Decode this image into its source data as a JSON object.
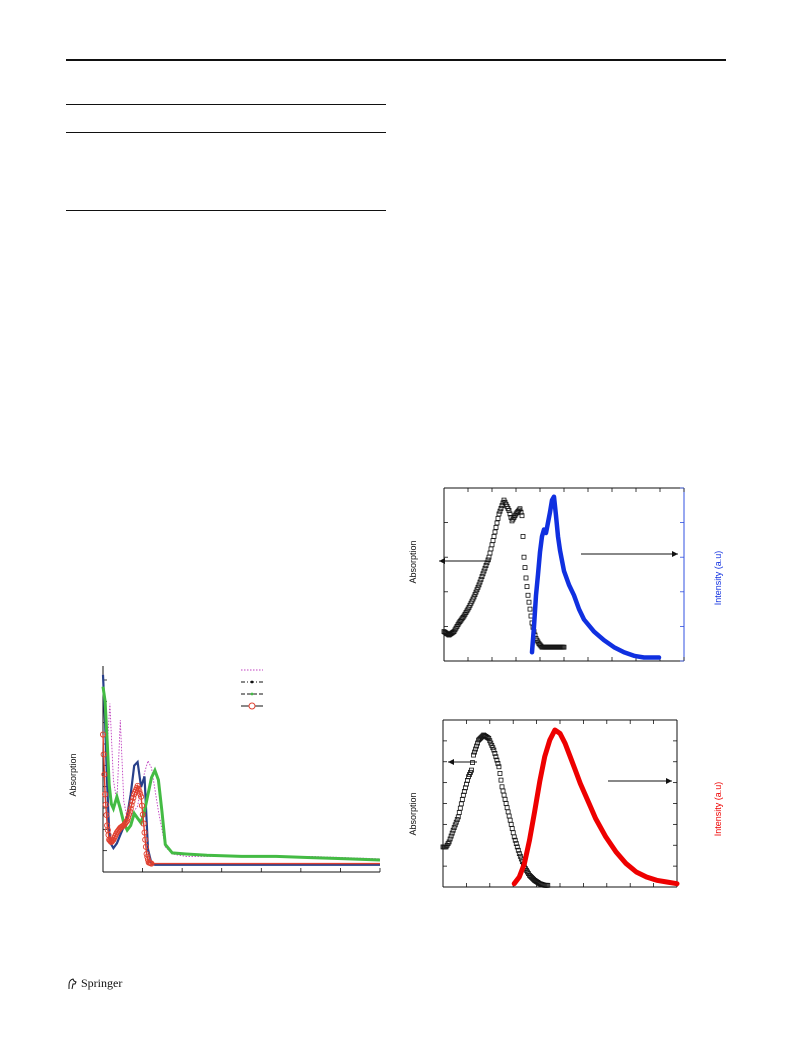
{
  "publisher": {
    "name": "Springer",
    "logo_icon": "springer-horse-icon"
  },
  "charts": {
    "absorption_series": {
      "type": "line",
      "ylabel": "Absorption",
      "legend_position": "top-right",
      "legend_labels": [
        "",
        "",
        "",
        ""
      ],
      "series": [
        {
          "style": "dotted",
          "color": "#c040c0",
          "x": [
            0,
            5,
            10,
            15,
            20,
            25,
            30,
            35,
            40,
            45,
            50,
            55,
            60,
            65,
            70,
            80,
            90,
            100,
            120,
            150,
            200,
            250,
            300,
            350,
            400
          ],
          "y": [
            8,
            4.5,
            6.8,
            3.6,
            2.7,
            6.1,
            2.7,
            2.0,
            2.1,
            2.3,
            2.5,
            3.3,
            3.9,
            4.4,
            4.1,
            2.3,
            0.8,
            0.5,
            0.4,
            0.4,
            0.4,
            0.4,
            0.4,
            0.35,
            0.3
          ]
        },
        {
          "style": "solid",
          "color": "#28408a",
          "x": [
            0,
            3,
            6,
            9,
            12,
            15,
            20,
            25,
            30,
            35,
            40,
            45,
            50,
            55,
            60,
            65,
            70,
            75,
            80,
            90,
            100,
            120,
            150,
            200,
            250,
            300,
            350,
            400
          ],
          "y": [
            8,
            6.0,
            3.4,
            1.4,
            0.9,
            0.75,
            0.95,
            1.3,
            1.65,
            2.1,
            3.0,
            4.2,
            4.35,
            3.3,
            3.75,
            0.7,
            0.1,
            0.05,
            0.05,
            0.05,
            0.05,
            0.05,
            0.05,
            0.05,
            0.05,
            0.05,
            0.05,
            0.05
          ]
        },
        {
          "style": "markers-star",
          "color": "#44bb44",
          "x": [
            0,
            3,
            6,
            9,
            12,
            15,
            20,
            25,
            30,
            35,
            40,
            45,
            50,
            55,
            60,
            65,
            70,
            75,
            80,
            85,
            90,
            100,
            120,
            150,
            200,
            250,
            300,
            350,
            400
          ],
          "y": [
            7.5,
            6.9,
            5.2,
            3.4,
            2.6,
            2.4,
            2.9,
            2.4,
            1.8,
            1.5,
            1.7,
            2.2,
            2.0,
            1.8,
            2.3,
            3.0,
            3.7,
            4.0,
            3.6,
            2.3,
            0.9,
            0.55,
            0.5,
            0.45,
            0.4,
            0.4,
            0.35,
            0.3,
            0.25
          ]
        },
        {
          "style": "markers-circle",
          "color": "#e04030",
          "x": [
            0,
            3,
            6,
            9,
            12,
            15,
            20,
            25,
            30,
            35,
            40,
            45,
            50,
            55,
            60,
            63,
            66,
            70,
            80,
            100,
            150,
            200,
            250,
            300,
            350,
            400
          ],
          "y": [
            5.5,
            3.0,
            1.7,
            1.1,
            1.0,
            1.1,
            1.4,
            1.6,
            1.7,
            1.9,
            2.4,
            3.0,
            3.35,
            2.9,
            1.4,
            0.5,
            0.15,
            0.1,
            0.1,
            0.1,
            0.1,
            0.1,
            0.1,
            0.1,
            0.1,
            0.1
          ]
        }
      ],
      "xlim": [
        0,
        400
      ],
      "ylim": [
        0,
        8.2
      ]
    },
    "abs_emission_blue": {
      "type": "line",
      "ylabel": "Absorption",
      "ylabel_right": "Intensity (a.u)",
      "absorption": {
        "color": "#111111",
        "x": [
          0,
          5,
          10,
          15,
          20,
          25,
          30,
          35,
          40,
          45,
          50,
          55,
          60,
          65,
          68,
          72,
          76,
          78,
          80,
          82,
          84,
          86,
          88,
          90,
          92,
          95,
          98,
          100,
          102,
          104,
          106,
          108,
          110,
          115,
          120
        ],
        "y": [
          0.17,
          0.15,
          0.17,
          0.22,
          0.26,
          0.31,
          0.37,
          0.44,
          0.52,
          0.6,
          0.72,
          0.85,
          0.93,
          0.87,
          0.81,
          0.85,
          0.88,
          0.84,
          0.6,
          0.48,
          0.38,
          0.3,
          0.22,
          0.17,
          0.13,
          0.1,
          0.08,
          0.08,
          0.08,
          0.08,
          0.08,
          0.08,
          0.08,
          0.08,
          0.08
        ]
      },
      "emission": {
        "color": "#1030e0",
        "x": [
          88,
          90,
          92,
          94,
          96,
          98,
          100,
          102,
          104,
          106,
          108,
          110,
          112,
          114,
          116,
          118,
          120,
          125,
          130,
          135,
          140,
          150,
          160,
          170,
          180,
          190,
          200,
          210,
          215
        ],
        "y": [
          0.05,
          0.2,
          0.38,
          0.5,
          0.63,
          0.72,
          0.76,
          0.74,
          0.8,
          0.86,
          0.93,
          0.95,
          0.84,
          0.72,
          0.64,
          0.58,
          0.52,
          0.44,
          0.38,
          0.3,
          0.24,
          0.17,
          0.12,
          0.08,
          0.05,
          0.03,
          0.02,
          0.02,
          0.02
        ]
      },
      "xlim": [
        0,
        240
      ],
      "ylim": [
        0,
        1
      ]
    },
    "abs_emission_red": {
      "type": "line",
      "ylabel": "Absorption",
      "ylabel_right": "Intensity (a.u)",
      "absorption": {
        "color": "#111111",
        "x": [
          0,
          3,
          6,
          10,
          15,
          20,
          25,
          28,
          30,
          35,
          40,
          45,
          50,
          55,
          58,
          62,
          66,
          70,
          75,
          80,
          85,
          90,
          95,
          100,
          103
        ],
        "y": [
          0.24,
          0.24,
          0.27,
          0.34,
          0.42,
          0.55,
          0.66,
          0.7,
          0.79,
          0.88,
          0.91,
          0.89,
          0.82,
          0.72,
          0.6,
          0.5,
          0.4,
          0.3,
          0.2,
          0.12,
          0.07,
          0.04,
          0.02,
          0.01,
          0.01
        ]
      },
      "emission": {
        "color": "#ee0000",
        "x": [
          70,
          75,
          80,
          85,
          90,
          95,
          100,
          105,
          110,
          115,
          120,
          125,
          130,
          135,
          140,
          145,
          150,
          160,
          170,
          180,
          190,
          200,
          210,
          220,
          230
        ],
        "y": [
          0.02,
          0.06,
          0.14,
          0.28,
          0.45,
          0.63,
          0.78,
          0.88,
          0.94,
          0.92,
          0.86,
          0.78,
          0.7,
          0.62,
          0.55,
          0.48,
          0.41,
          0.3,
          0.21,
          0.14,
          0.09,
          0.06,
          0.04,
          0.03,
          0.02
        ]
      },
      "xlim": [
        0,
        230
      ],
      "ylim": [
        0,
        1
      ]
    }
  }
}
